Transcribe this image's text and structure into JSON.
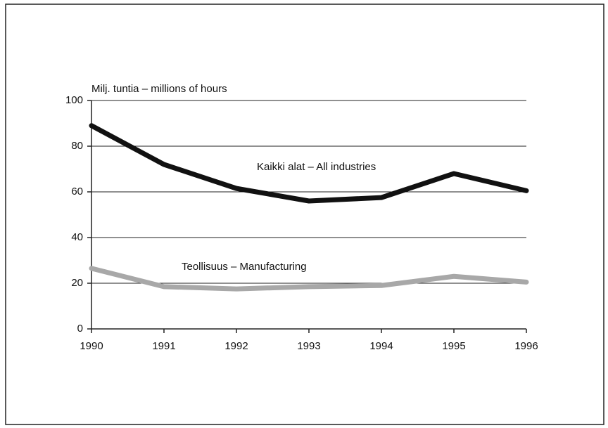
{
  "chart_data": {
    "type": "line",
    "y_label": "Milj. tuntia – millions of hours",
    "x": [
      1990,
      1991,
      1992,
      1993,
      1994,
      1995,
      1996
    ],
    "xlim": [
      1990,
      1996
    ],
    "xticks": [
      1990,
      1991,
      1992,
      1993,
      1994,
      1995,
      1996
    ],
    "ylim": [
      0,
      100
    ],
    "yticks": [
      0,
      20,
      40,
      60,
      80,
      100
    ],
    "grid": true,
    "series": [
      {
        "name": "Kaikki alat – All industries",
        "color": "#111111",
        "values": [
          89,
          72,
          61.5,
          56,
          57.5,
          68,
          60.5
        ]
      },
      {
        "name": "Teollisuus – Manufacturing",
        "color": "#a8a8a8",
        "values": [
          26.5,
          18.5,
          17.5,
          18.5,
          19,
          23,
          20.5
        ]
      }
    ]
  }
}
